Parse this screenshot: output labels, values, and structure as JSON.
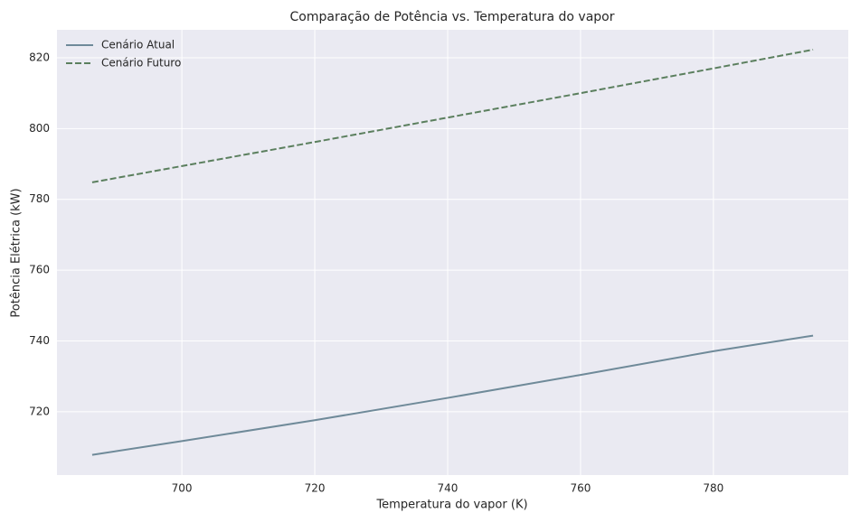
{
  "chart_data": {
    "type": "line",
    "title": "Comparação de Potência vs. Temperatura do vapor",
    "x_label": "Temperatura do vapor (K)",
    "y_label": "Potência Elétrica (kW)",
    "x": [
      686.5,
      700,
      720,
      740,
      760,
      780,
      795
    ],
    "series": [
      {
        "name": "Cenário Atual",
        "color": "#6f8a99",
        "linestyle": "solid",
        "values": [
          707.8,
          711.7,
          717.6,
          723.9,
          730.4,
          737.1,
          741.5
        ]
      },
      {
        "name": "Cenário Futuro",
        "color": "#5b7f5e",
        "linestyle": "dashed",
        "values": [
          784.8,
          789.4,
          796.2,
          803.1,
          810.0,
          817.0,
          822.3
        ]
      }
    ],
    "xlim": [
      681.2,
      800.3
    ],
    "xticks": [
      700,
      720,
      740,
      760,
      780
    ],
    "ylim": [
      702.1,
      827.9
    ],
    "yticks": [
      720,
      740,
      760,
      780,
      800,
      820
    ],
    "grid": true,
    "legend": "upper left"
  }
}
